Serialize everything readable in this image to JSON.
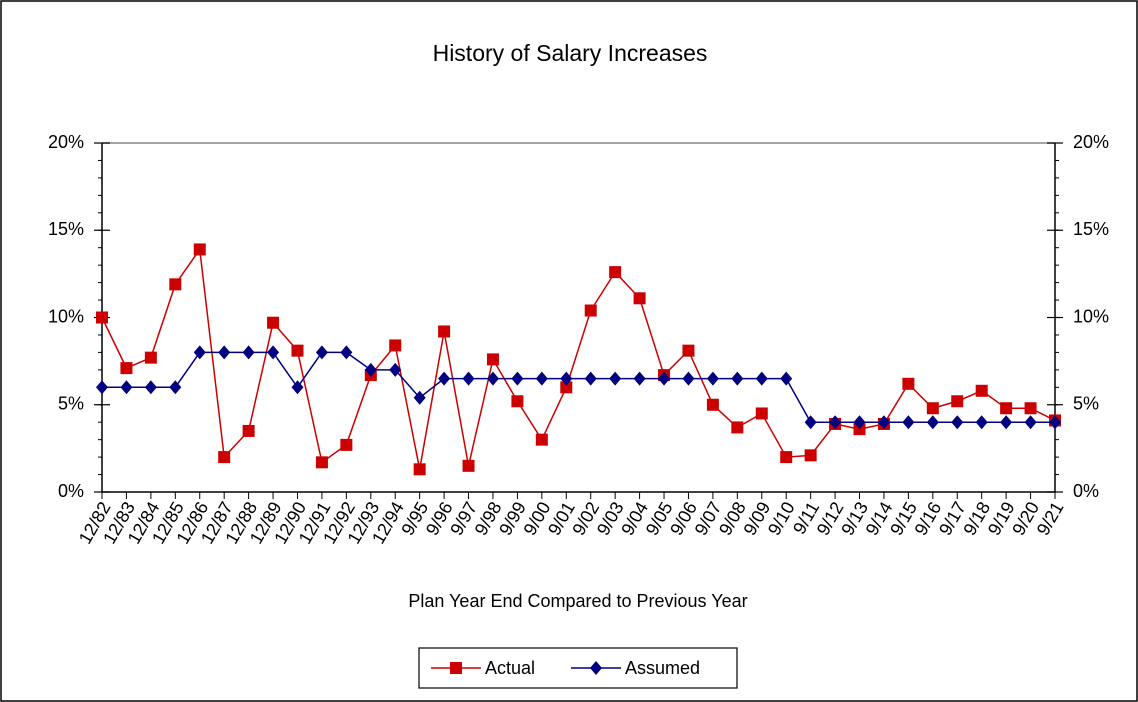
{
  "chart_data": {
    "type": "line",
    "title": "History of Salary Increases",
    "x_label": "Plan Year End Compared to Previous Year",
    "categories": [
      "12/82",
      "12/83",
      "12/84",
      "12/85",
      "12/86",
      "12/87",
      "12/88",
      "12/89",
      "12/90",
      "12/91",
      "12/92",
      "12/93",
      "12/94",
      "9/95",
      "9/96",
      "9/97",
      "9/98",
      "9/99",
      "9/00",
      "9/01",
      "9/02",
      "9/03",
      "9/04",
      "9/05",
      "9/06",
      "9/07",
      "9/08",
      "9/09",
      "9/10",
      "9/11",
      "9/12",
      "9/13",
      "9/14",
      "9/15",
      "9/16",
      "9/17",
      "9/18",
      "9/19",
      "9/20",
      "9/21"
    ],
    "series": [
      {
        "name": "Actual",
        "color": "#cc0000",
        "marker": "square",
        "values": [
          10.0,
          7.1,
          7.7,
          11.9,
          13.9,
          2.0,
          3.5,
          9.7,
          8.1,
          1.7,
          2.7,
          6.7,
          8.4,
          1.3,
          9.2,
          1.5,
          7.6,
          5.2,
          3.0,
          6.0,
          10.4,
          12.6,
          11.1,
          6.7,
          8.1,
          5.0,
          3.7,
          4.5,
          2.0,
          2.1,
          3.9,
          3.6,
          3.9,
          6.2,
          4.8,
          5.2,
          5.8,
          4.8,
          4.8,
          4.1
        ]
      },
      {
        "name": "Assumed",
        "color": "#000080",
        "marker": "diamond",
        "values": [
          6.0,
          6.0,
          6.0,
          6.0,
          8.0,
          8.0,
          8.0,
          8.0,
          6.0,
          8.0,
          8.0,
          7.0,
          7.0,
          5.4,
          6.5,
          6.5,
          6.5,
          6.5,
          6.5,
          6.5,
          6.5,
          6.5,
          6.5,
          6.5,
          6.5,
          6.5,
          6.5,
          6.5,
          6.5,
          4.0,
          4.0,
          4.0,
          4.0,
          4.0,
          4.0,
          4.0,
          4.0,
          4.0,
          4.0,
          4.0
        ]
      }
    ],
    "ylim": [
      0,
      20
    ],
    "yticks": [
      {
        "value": 0,
        "label": "0%"
      },
      {
        "value": 5,
        "label": "5%"
      },
      {
        "value": 10,
        "label": "10%"
      },
      {
        "value": 15,
        "label": "15%"
      },
      {
        "value": 20,
        "label": "20%"
      }
    ],
    "y2lim": [
      0,
      20
    ],
    "y2ticks": [
      {
        "value": 0,
        "label": "0%"
      },
      {
        "value": 5,
        "label": "5%"
      },
      {
        "value": 10,
        "label": "10%"
      },
      {
        "value": 15,
        "label": "15%"
      },
      {
        "value": 20,
        "label": "20%"
      }
    ],
    "grid": false,
    "legend": "bottom"
  }
}
